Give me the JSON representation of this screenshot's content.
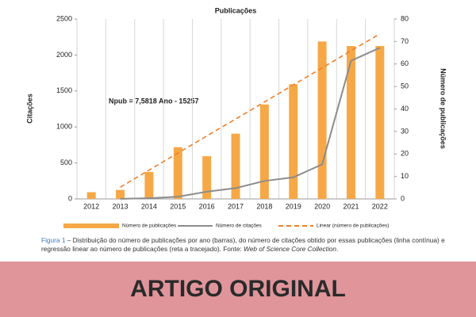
{
  "chart_data": {
    "type": "combo",
    "title": "Publicações",
    "y_label": "Citações",
    "y2_label": "Número de publicações",
    "annotation": "Npub = 7,5818 Ano - 15257",
    "categories": [
      "2012",
      "2013",
      "2014",
      "2015",
      "2016",
      "2017",
      "2018",
      "2019",
      "2020",
      "2021",
      "2022"
    ],
    "ylim": [
      0,
      2500
    ],
    "yticks": [
      0,
      500,
      1000,
      1500,
      2000,
      2500
    ],
    "y2lim": [
      0,
      80
    ],
    "y2ticks": [
      0,
      10,
      20,
      30,
      40,
      50,
      60,
      70,
      80
    ],
    "series": [
      {
        "name": "Número de publicações",
        "type": "bar",
        "axis": "y2",
        "color": "#f6a846",
        "values": [
          3,
          4,
          12,
          23,
          19,
          29,
          42,
          51,
          70,
          68,
          68
        ]
      },
      {
        "name": "Número de citações",
        "type": "line",
        "axis": "y",
        "color": "#8c8c8c",
        "values": [
          null,
          2,
          10,
          30,
          100,
          150,
          250,
          300,
          480,
          1920,
          2100
        ]
      },
      {
        "name": "Linear (número de publicações)",
        "type": "line",
        "axis": "y2",
        "color": "#f07f2a",
        "dashed": true,
        "values": [
          null,
          5.2,
          12.8,
          20.4,
          28.0,
          35.5,
          43.1,
          50.7,
          58.3,
          65.9,
          73.4
        ]
      }
    ]
  },
  "caption": {
    "label": "Figura 1",
    "text": " – Distribuição do número de publicações por ano (barras), do número de citações obtido por essas publicações (linha contínua) e regressão linear ao número de publicações (reta a tracejado). Fonte: ",
    "source": "Web of Science Core Collection",
    "end": "."
  },
  "banner": "ARTIGO ORIGINAL"
}
